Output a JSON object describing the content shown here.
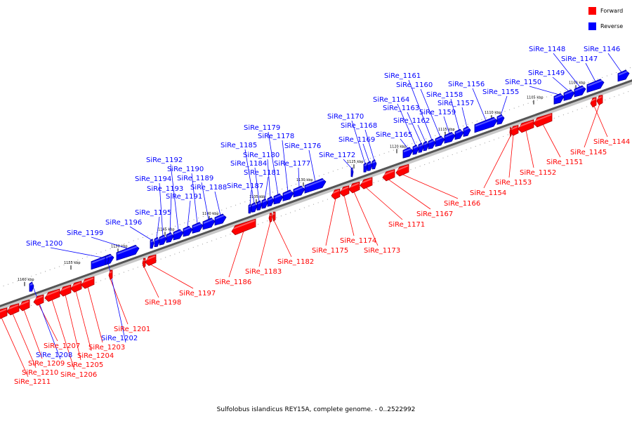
{
  "diagram": {
    "type": "linear-genome-map",
    "colors": {
      "forward": "#ff0000",
      "reverse": "#0000ff",
      "forward_dark": "#b00000",
      "reverse_dark": "#0000a0"
    },
    "legend": [
      {
        "key": "forward",
        "label": "Forward"
      },
      {
        "key": "reverse",
        "label": "Reverse"
      }
    ],
    "caption": "Sulfolobus islandicus REY15A, complete genome. - 0..2522992",
    "scale_ticks": [
      "1100 kbp",
      "1105 kbp",
      "1110 kbp",
      "1115 kbp",
      "1120 kbp",
      "1125 kbp",
      "1130 kbp",
      "1135 kbp",
      "1140 kbp",
      "1145 kbp",
      "1150 kbp",
      "1155 kbp",
      "1160 kbp"
    ],
    "genes": [
      {
        "name": "SiRe_1144",
        "strand": "forward"
      },
      {
        "name": "SiRe_1145",
        "strand": "forward"
      },
      {
        "name": "SiRe_1146",
        "strand": "reverse"
      },
      {
        "name": "SiRe_1147",
        "strand": "reverse"
      },
      {
        "name": "SiRe_1148",
        "strand": "reverse"
      },
      {
        "name": "SiRe_1149",
        "strand": "reverse"
      },
      {
        "name": "SiRe_1150",
        "strand": "reverse"
      },
      {
        "name": "SiRe_1151",
        "strand": "forward"
      },
      {
        "name": "SiRe_1152",
        "strand": "forward"
      },
      {
        "name": "SiRe_1153",
        "strand": "forward"
      },
      {
        "name": "SiRe_1154",
        "strand": "forward"
      },
      {
        "name": "SiRe_1155",
        "strand": "reverse"
      },
      {
        "name": "SiRe_1156",
        "strand": "reverse"
      },
      {
        "name": "SiRe_1157",
        "strand": "reverse"
      },
      {
        "name": "SiRe_1158",
        "strand": "reverse"
      },
      {
        "name": "SiRe_1159",
        "strand": "reverse"
      },
      {
        "name": "SiRe_1160",
        "strand": "reverse"
      },
      {
        "name": "SiRe_1161",
        "strand": "reverse"
      },
      {
        "name": "SiRe_1162",
        "strand": "reverse"
      },
      {
        "name": "SiRe_1163",
        "strand": "reverse"
      },
      {
        "name": "SiRe_1164",
        "strand": "reverse"
      },
      {
        "name": "SiRe_1165",
        "strand": "reverse"
      },
      {
        "name": "SiRe_1166",
        "strand": "forward"
      },
      {
        "name": "SiRe_1167",
        "strand": "forward"
      },
      {
        "name": "SiRe_1168",
        "strand": "reverse"
      },
      {
        "name": "SiRe_1169",
        "strand": "reverse"
      },
      {
        "name": "SiRe_1170",
        "strand": "reverse"
      },
      {
        "name": "SiRe_1171",
        "strand": "forward"
      },
      {
        "name": "SiRe_1172",
        "strand": "reverse"
      },
      {
        "name": "SiRe_1173",
        "strand": "forward"
      },
      {
        "name": "SiRe_1174",
        "strand": "forward"
      },
      {
        "name": "SiRe_1175",
        "strand": "forward"
      },
      {
        "name": "SiRe_1176",
        "strand": "reverse"
      },
      {
        "name": "SiRe_1177",
        "strand": "reverse"
      },
      {
        "name": "SiRe_1178",
        "strand": "reverse"
      },
      {
        "name": "SiRe_1179",
        "strand": "reverse"
      },
      {
        "name": "SiRe_1180",
        "strand": "reverse"
      },
      {
        "name": "SiRe_1181",
        "strand": "reverse"
      },
      {
        "name": "SiRe_1182",
        "strand": "forward"
      },
      {
        "name": "SiRe_1183",
        "strand": "forward"
      },
      {
        "name": "SiRe_1184",
        "strand": "reverse"
      },
      {
        "name": "SiRe_1185",
        "strand": "reverse"
      },
      {
        "name": "SiRe_1186",
        "strand": "forward"
      },
      {
        "name": "SiRe_1187",
        "strand": "reverse"
      },
      {
        "name": "SiRe_1188",
        "strand": "reverse"
      },
      {
        "name": "SiRe_1189",
        "strand": "reverse"
      },
      {
        "name": "SiRe_1190",
        "strand": "reverse"
      },
      {
        "name": "SiRe_1191",
        "strand": "reverse"
      },
      {
        "name": "SiRe_1192",
        "strand": "reverse"
      },
      {
        "name": "SiRe_1193",
        "strand": "reverse"
      },
      {
        "name": "SiRe_1194",
        "strand": "reverse"
      },
      {
        "name": "SiRe_1195",
        "strand": "reverse"
      },
      {
        "name": "SiRe_1196",
        "strand": "reverse"
      },
      {
        "name": "SiRe_1197",
        "strand": "forward"
      },
      {
        "name": "SiRe_1198",
        "strand": "forward"
      },
      {
        "name": "SiRe_1199",
        "strand": "reverse"
      },
      {
        "name": "SiRe_1200",
        "strand": "reverse"
      },
      {
        "name": "SiRe_1201",
        "strand": "forward"
      },
      {
        "name": "SiRe_1202",
        "strand": "reverse"
      },
      {
        "name": "SiRe_1203",
        "strand": "forward"
      },
      {
        "name": "SiRe_1204",
        "strand": "forward"
      },
      {
        "name": "SiRe_1205",
        "strand": "forward"
      },
      {
        "name": "SiRe_1206",
        "strand": "forward"
      },
      {
        "name": "SiRe_1207",
        "strand": "forward"
      },
      {
        "name": "SiRe_1208",
        "strand": "reverse"
      },
      {
        "name": "SiRe_1209",
        "strand": "forward"
      },
      {
        "name": "SiRe_1210",
        "strand": "forward"
      },
      {
        "name": "SiRe_1211",
        "strand": "forward"
      }
    ]
  }
}
